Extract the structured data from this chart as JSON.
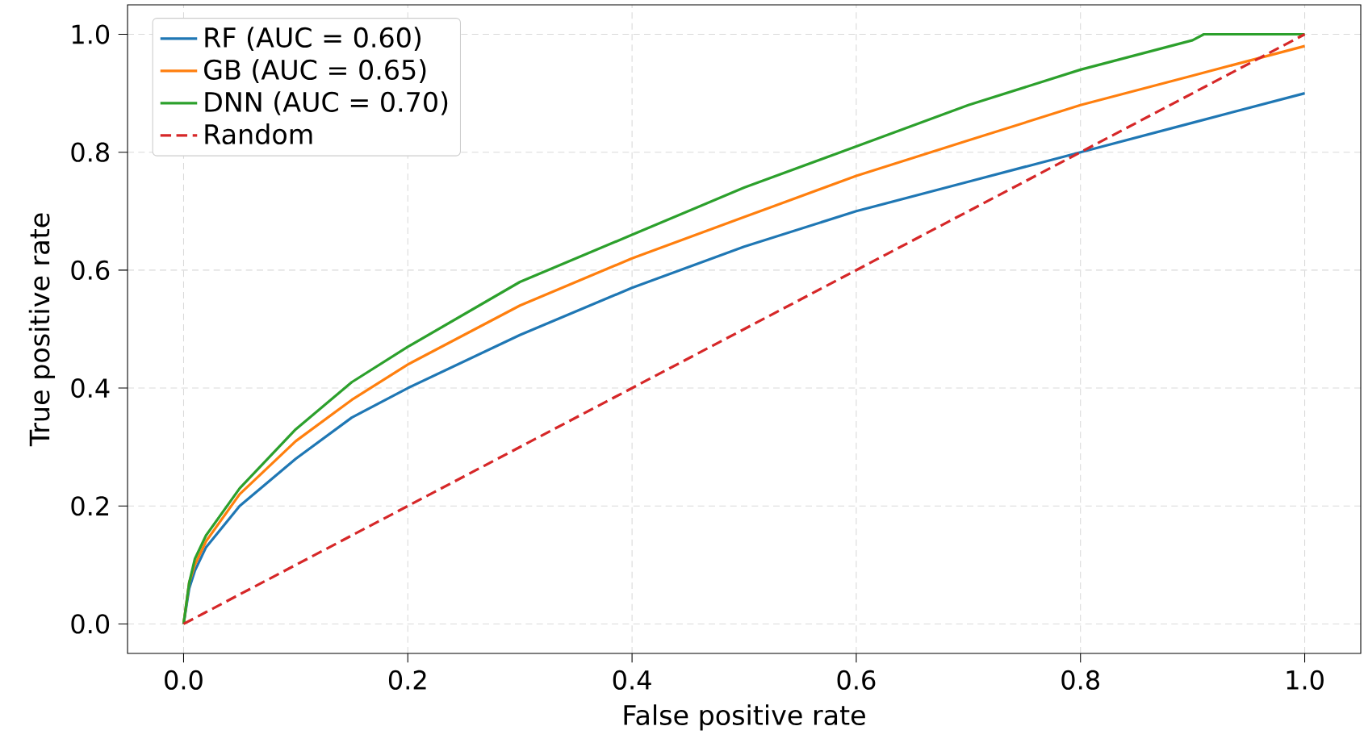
{
  "chart_data": {
    "type": "line",
    "xlabel": "False positive rate",
    "ylabel": "True positive rate",
    "xlim": [
      -0.05,
      1.05
    ],
    "ylim": [
      -0.05,
      1.05
    ],
    "xticks": [
      {
        "value": 0,
        "label": "0.0"
      },
      {
        "value": 0.2,
        "label": "0.2"
      },
      {
        "value": 0.4,
        "label": "0.4"
      },
      {
        "value": 0.6,
        "label": "0.6"
      },
      {
        "value": 0.8,
        "label": "0.8"
      },
      {
        "value": 1,
        "label": "1.0"
      }
    ],
    "yticks": [
      {
        "value": 0,
        "label": "0.0"
      },
      {
        "value": 0.2,
        "label": "0.2"
      },
      {
        "value": 0.4,
        "label": "0.4"
      },
      {
        "value": 0.6,
        "label": "0.6"
      },
      {
        "value": 0.8,
        "label": "0.8"
      },
      {
        "value": 1,
        "label": "1.0"
      }
    ],
    "grid": true,
    "legend": "top left",
    "series": [
      {
        "name": "RF (AUC = 0.60)",
        "color": "#1f77b4",
        "x": [
          0,
          0.005,
          0.01,
          0.02,
          0.05,
          0.1,
          0.15,
          0.2,
          0.3,
          0.4,
          0.5,
          0.6,
          0.7,
          0.8,
          0.9,
          1
        ],
        "values": [
          0,
          0.06,
          0.09,
          0.13,
          0.2,
          0.28,
          0.35,
          0.4,
          0.49,
          0.57,
          0.64,
          0.7,
          0.75,
          0.8,
          0.85,
          0.9
        ]
      },
      {
        "name": "GB (AUC = 0.65)",
        "color": "#ff7f0e",
        "x": [
          0,
          0.005,
          0.01,
          0.02,
          0.05,
          0.1,
          0.15,
          0.2,
          0.3,
          0.4,
          0.5,
          0.6,
          0.7,
          0.8,
          0.9,
          1
        ],
        "values": [
          0,
          0.07,
          0.1,
          0.14,
          0.22,
          0.31,
          0.38,
          0.44,
          0.54,
          0.62,
          0.69,
          0.76,
          0.82,
          0.88,
          0.93,
          0.98
        ]
      },
      {
        "name": "DNN (AUC = 0.70)",
        "color": "#2ca02c",
        "x": [
          0,
          0.005,
          0.01,
          0.02,
          0.05,
          0.1,
          0.15,
          0.2,
          0.3,
          0.4,
          0.5,
          0.6,
          0.7,
          0.8,
          0.9,
          0.91,
          1
        ],
        "values": [
          0,
          0.07,
          0.11,
          0.15,
          0.23,
          0.33,
          0.41,
          0.47,
          0.58,
          0.66,
          0.74,
          0.81,
          0.88,
          0.94,
          0.99,
          1,
          1
        ]
      },
      {
        "name": "Random",
        "color": "#d62728",
        "line_style": "dashed",
        "x": [
          0,
          1
        ],
        "values": [
          0,
          1
        ]
      }
    ]
  }
}
